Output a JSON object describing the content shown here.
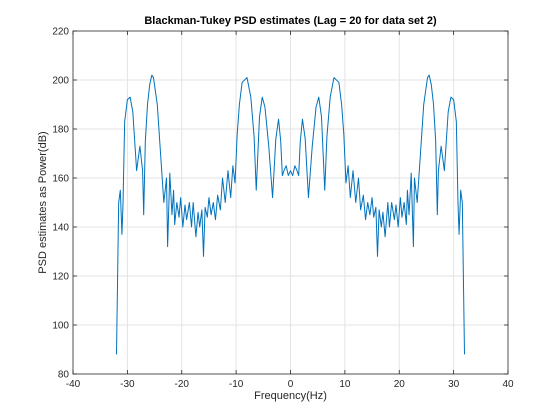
{
  "chart_data": {
    "type": "line",
    "title": "Blackman-Tukey PSD estimates (Lag = 20 for data set 2)",
    "xlabel": "Frequency(Hz)",
    "ylabel": "PSD estimates as Power(dB)",
    "xlim": [
      -40,
      40
    ],
    "ylim": [
      80,
      220
    ],
    "xticks": [
      -40,
      -30,
      -20,
      -10,
      0,
      10,
      20,
      30,
      40
    ],
    "yticks": [
      80,
      100,
      120,
      140,
      160,
      180,
      200,
      220
    ],
    "xtick_labels": [
      "-40",
      "-30",
      "-20",
      "-10",
      "0",
      "10",
      "20",
      "30",
      "40"
    ],
    "ytick_labels": [
      "80",
      "100",
      "120",
      "140",
      "160",
      "180",
      "200",
      "220"
    ],
    "grid": true,
    "series": [
      {
        "color": "#0072bd",
        "x": [
          -32.0,
          -31.6,
          -31.3,
          -31.0,
          -30.8,
          -30.5,
          -30.0,
          -29.5,
          -29.0,
          -28.3,
          -27.7,
          -27.2,
          -27.0,
          -26.7,
          -26.3,
          -25.9,
          -25.5,
          -25.2,
          -24.5,
          -23.9,
          -23.3,
          -22.8,
          -22.6,
          -22.2,
          -21.8,
          -21.5,
          -21.3,
          -20.9,
          -20.5,
          -20.2,
          -19.8,
          -19.4,
          -19.1,
          -18.6,
          -18.2,
          -17.9,
          -17.4,
          -17.0,
          -16.7,
          -16.3,
          -16.0,
          -15.7,
          -15.3,
          -15.0,
          -14.6,
          -14.2,
          -13.8,
          -13.4,
          -12.9,
          -12.5,
          -12.0,
          -11.5,
          -11.0,
          -10.6,
          -10.2,
          -9.8,
          -9.4,
          -8.9,
          -8.0,
          -7.3,
          -6.7,
          -6.3,
          -6.1,
          -5.7,
          -5.2,
          -4.7,
          -4.0,
          -3.3,
          -2.7,
          -2.2,
          -1.8,
          -1.5,
          -1.2,
          -0.8,
          -0.4,
          0.0,
          0.4,
          0.8,
          1.2,
          1.5,
          1.8,
          2.2,
          2.7,
          3.3,
          4.0,
          4.7,
          5.2,
          5.7,
          6.1,
          6.3,
          6.7,
          7.3,
          8.0,
          8.9,
          9.4,
          9.8,
          10.2,
          10.6,
          11.0,
          11.5,
          12.0,
          12.5,
          12.9,
          13.4,
          13.8,
          14.2,
          14.6,
          15.0,
          15.3,
          15.7,
          16.0,
          16.3,
          16.7,
          17.0,
          17.4,
          17.9,
          18.2,
          18.6,
          19.1,
          19.4,
          19.8,
          20.2,
          20.5,
          20.9,
          21.3,
          21.5,
          21.8,
          22.2,
          22.6,
          22.8,
          23.3,
          23.9,
          24.5,
          25.2,
          25.5,
          25.9,
          26.3,
          26.7,
          27.0,
          27.2,
          27.7,
          28.3,
          29.0,
          29.5,
          30.0,
          30.5,
          30.8,
          31.0,
          31.3,
          31.6,
          32.0
        ],
        "y": [
          88,
          150,
          155,
          137,
          150,
          183,
          192,
          193,
          187,
          163,
          173,
          163,
          145,
          175,
          190,
          198,
          202,
          201,
          190,
          170,
          150,
          160,
          132,
          162,
          145,
          155,
          141,
          150,
          144,
          152,
          140,
          149,
          143,
          150,
          140,
          150,
          136,
          146,
          140,
          147,
          128,
          148,
          144,
          152,
          145,
          150,
          143,
          153,
          147,
          160,
          150,
          163,
          152,
          165,
          158,
          178,
          190,
          199,
          201,
          193,
          177,
          155,
          165,
          185,
          193,
          189,
          173,
          152,
          176,
          184,
          175,
          161,
          163,
          165,
          161,
          163,
          161,
          165,
          163,
          161,
          175,
          184,
          176,
          152,
          173,
          189,
          193,
          185,
          165,
          155,
          177,
          193,
          201,
          199,
          190,
          178,
          158,
          165,
          152,
          163,
          150,
          160,
          147,
          153,
          143,
          150,
          145,
          152,
          144,
          148,
          128,
          147,
          140,
          146,
          136,
          150,
          140,
          150,
          143,
          149,
          140,
          152,
          144,
          150,
          141,
          155,
          145,
          162,
          132,
          160,
          150,
          170,
          190,
          201,
          202,
          198,
          190,
          175,
          145,
          163,
          173,
          163,
          187,
          193,
          192,
          183,
          150,
          137,
          155,
          150,
          88
        ]
      }
    ]
  }
}
